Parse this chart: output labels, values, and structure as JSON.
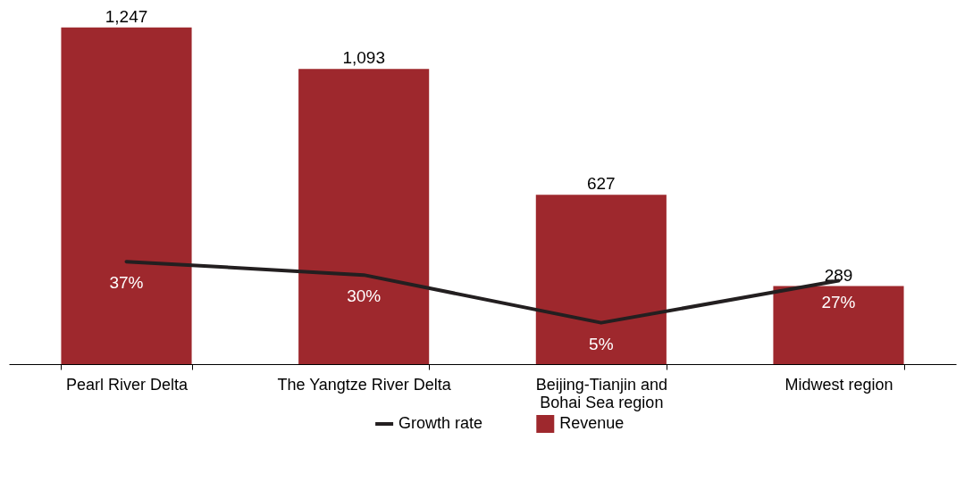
{
  "chart_data": {
    "type": "bar",
    "categories": [
      "Pearl River Delta",
      "The Yangtze River Delta",
      "Beijing-Tianjin and Bohai Sea region",
      "Midwest region"
    ],
    "series": [
      {
        "name": "Revenue",
        "color": "#9e282d",
        "values": [
          1247,
          1093,
          627,
          289
        ],
        "value_labels": [
          "1,247",
          "1,093",
          "627",
          "289"
        ]
      },
      {
        "name": "Growth rate",
        "type": "line",
        "axis": "y2",
        "color": "#231f20",
        "values": [
          37,
          30,
          5,
          27
        ],
        "value_labels": [
          "37%",
          "30%",
          "5%",
          "27%"
        ]
      }
    ],
    "data_labels": true,
    "legend": "bottom"
  }
}
